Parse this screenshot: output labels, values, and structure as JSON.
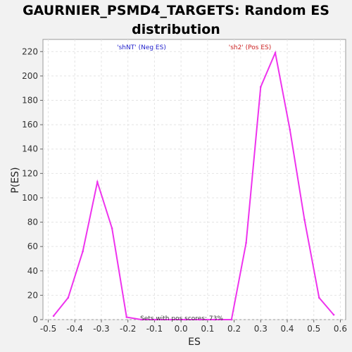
{
  "chart_data": {
    "type": "line",
    "title": "GAURNIER_PSMD4_TARGETS: Random ES distribution",
    "xlabel": "ES",
    "ylabel": "P(ES)",
    "xlim": [
      -0.52,
      0.62
    ],
    "ylim": [
      0,
      230
    ],
    "xticks": [
      "-0.5",
      "-0.4",
      "-0.3",
      "-0.2",
      "-0.1",
      "0.0",
      "0.1",
      "0.2",
      "0.3",
      "0.4",
      "0.5",
      "0.6"
    ],
    "yticks": [
      "0",
      "20",
      "40",
      "60",
      "80",
      "100",
      "120",
      "140",
      "160",
      "180",
      "200",
      "220"
    ],
    "grid": true,
    "series": [
      {
        "color": "#ee33ee",
        "x": [
          -0.48,
          -0.425,
          -0.37,
          -0.315,
          -0.26,
          -0.205,
          -0.15,
          -0.095,
          -0.04,
          0.015,
          0.07,
          0.125,
          0.19,
          0.245,
          0.3,
          0.355,
          0.41,
          0.465,
          0.52,
          0.575
        ],
        "y": [
          3,
          18,
          56,
          113,
          75,
          2,
          0,
          0,
          0,
          0,
          0,
          0,
          0,
          63,
          191,
          219,
          156,
          82,
          18,
          4
        ]
      }
    ],
    "annotations": [
      {
        "text": "'shNT' (Neg ES)",
        "color": "#2222cc"
      },
      {
        "text": "'sh2' (Pos ES)",
        "color": "#cc2222"
      },
      {
        "text": "Sets with pos scores: 73%",
        "color": "#333333"
      }
    ]
  }
}
